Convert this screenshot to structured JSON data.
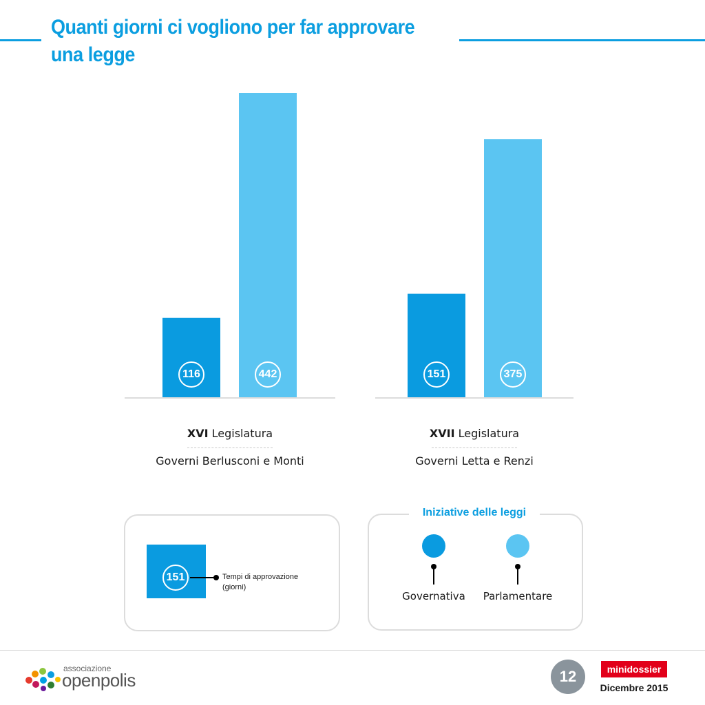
{
  "header": {
    "title_line1": "Quanti giorni ci vogliono per far approvare",
    "title_line2": "una legge"
  },
  "chart_data": {
    "type": "bar",
    "title": "Quanti giorni ci vogliono per far approvare una legge",
    "categories": [
      "XVI Legislatura",
      "XVII Legislatura"
    ],
    "category_subtitles": [
      "Governi Berlusconi e Monti",
      "Governi Letta e Renzi"
    ],
    "series": [
      {
        "name": "Governativa",
        "values": [
          116,
          151
        ],
        "color": "#0a9be0"
      },
      {
        "name": "Parlamentare",
        "values": [
          442,
          375
        ],
        "color": "#5bc5f2"
      }
    ],
    "ylim": [
      0,
      442
    ],
    "grid": false,
    "legend_placement": "bottom-right"
  },
  "groups": [
    {
      "roman": "XVI",
      "label": "Legislatura",
      "subtitle": "Governi Berlusconi e Monti"
    },
    {
      "roman": "XVII",
      "label": "Legislatura",
      "subtitle": "Governi Letta e Renzi"
    }
  ],
  "legend_example": {
    "value": "151",
    "text_line1": "Tempi di approvazione",
    "text_line2": "(giorni)"
  },
  "legend_series": {
    "title": "Iniziative delle leggi",
    "items": [
      {
        "label": "Governativa",
        "color": "#0a9be0"
      },
      {
        "label": "Parlamentare",
        "color": "#5bc5f2"
      }
    ]
  },
  "footer": {
    "org_small": "associazione",
    "org_name": "openpolis",
    "page_number": "12",
    "badge": "minidossier",
    "date": "Dicembre 2015"
  }
}
